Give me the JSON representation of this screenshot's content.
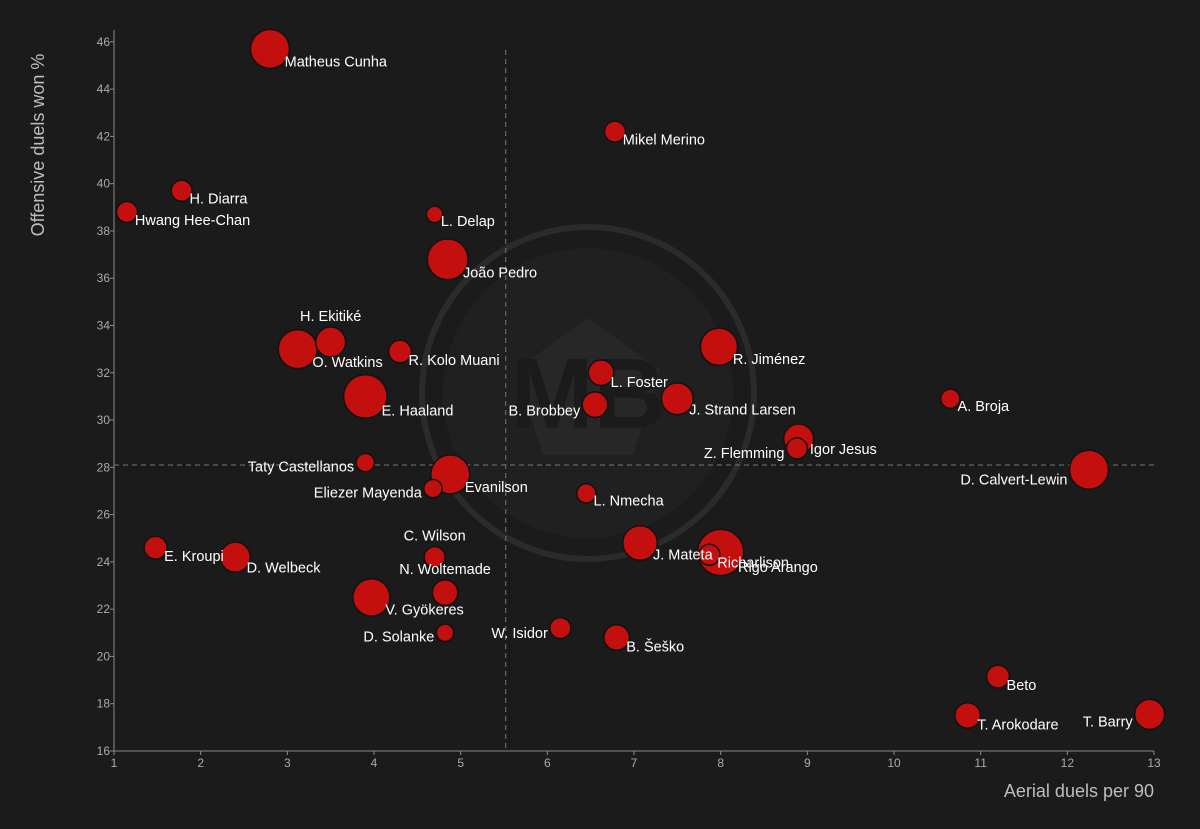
{
  "chart_data": {
    "type": "scatter",
    "title": "",
    "xlabel": "Aerial duels per 90",
    "ylabel": "Offensive duels won %",
    "xlim": [
      1,
      13
    ],
    "ylim": [
      16,
      46.5
    ],
    "xticks": [
      1,
      2,
      3,
      4,
      5,
      6,
      7,
      8,
      9,
      10,
      11,
      12,
      13
    ],
    "yticks": [
      16,
      18,
      20,
      22,
      24,
      26,
      28,
      30,
      32,
      34,
      36,
      38,
      40,
      42,
      44,
      46
    ],
    "reference_lines": {
      "x": 5.52,
      "y": 28.1
    },
    "grid": false,
    "watermark": "MB",
    "colors": {
      "background": "#1b1b1b",
      "marker": "#c40f0f",
      "text": "#ffffff",
      "axis": "#aaaaaa"
    },
    "points": [
      {
        "name": "Matheus Cunha",
        "x": 2.8,
        "y": 45.7,
        "size": 3,
        "anchor": "right"
      },
      {
        "name": "Mikel Merino",
        "x": 6.78,
        "y": 42.2,
        "size": 1,
        "anchor": "right"
      },
      {
        "name": "H. Diarra",
        "x": 1.78,
        "y": 39.7,
        "size": 1,
        "anchor": "right"
      },
      {
        "name": "Hwang Hee-Chan",
        "x": 1.15,
        "y": 38.8,
        "size": 1,
        "anchor": "right"
      },
      {
        "name": "L. Delap",
        "x": 4.7,
        "y": 38.7,
        "size": 0.5,
        "anchor": "right"
      },
      {
        "name": "João Pedro",
        "x": 4.85,
        "y": 36.8,
        "size": 3.2,
        "anchor": "right"
      },
      {
        "name": "H. Ekitiké",
        "x": 3.5,
        "y": 33.3,
        "size": 2,
        "anchor": "above"
      },
      {
        "name": "O. Watkins",
        "x": 3.12,
        "y": 33.0,
        "size": 3,
        "anchor": "right"
      },
      {
        "name": "R. Kolo Muani",
        "x": 4.3,
        "y": 32.9,
        "size": 1.2,
        "anchor": "right"
      },
      {
        "name": "R. Jiménez",
        "x": 7.98,
        "y": 33.1,
        "size": 2.8,
        "anchor": "right"
      },
      {
        "name": "L. Foster",
        "x": 6.62,
        "y": 32.0,
        "size": 1.5,
        "anchor": "right"
      },
      {
        "name": "E. Haaland",
        "x": 3.9,
        "y": 31.0,
        "size": 3.5,
        "anchor": "right"
      },
      {
        "name": "J. Strand Larsen",
        "x": 7.5,
        "y": 30.9,
        "size": 2.2,
        "anchor": "right"
      },
      {
        "name": "B. Brobbey",
        "x": 6.55,
        "y": 30.65,
        "size": 1.5,
        "anchor": "left"
      },
      {
        "name": "A. Broja",
        "x": 10.65,
        "y": 30.9,
        "size": 0.8,
        "anchor": "right"
      },
      {
        "name": "Igor Jesus",
        "x": 8.9,
        "y": 29.2,
        "size": 2,
        "anchor": "right"
      },
      {
        "name": "Z. Flemming",
        "x": 8.88,
        "y": 28.8,
        "size": 1,
        "anchor": "left"
      },
      {
        "name": "D. Calvert-Lewin",
        "x": 12.25,
        "y": 27.9,
        "size": 3,
        "anchor": "left"
      },
      {
        "name": "Taty Castellanos",
        "x": 3.9,
        "y": 28.2,
        "size": 0.7,
        "anchor": "left"
      },
      {
        "name": "Evanilson",
        "x": 4.88,
        "y": 27.7,
        "size": 3,
        "anchor": "right"
      },
      {
        "name": "Eliezer Mayenda",
        "x": 4.68,
        "y": 27.1,
        "size": 0.7,
        "anchor": "left"
      },
      {
        "name": "L. Nmecha",
        "x": 6.45,
        "y": 26.9,
        "size": 0.8,
        "anchor": "right"
      },
      {
        "name": "E. Kroupi",
        "x": 1.48,
        "y": 24.6,
        "size": 1.2,
        "anchor": "right"
      },
      {
        "name": "D. Welbeck",
        "x": 2.4,
        "y": 24.2,
        "size": 2,
        "anchor": "right"
      },
      {
        "name": "C. Wilson",
        "x": 4.7,
        "y": 24.2,
        "size": 1,
        "anchor": "above"
      },
      {
        "name": "J. Mateta",
        "x": 7.07,
        "y": 24.8,
        "size": 2.5,
        "anchor": "right"
      },
      {
        "name": "Richarlison",
        "x": 7.87,
        "y": 24.3,
        "size": 1,
        "anchor": "right"
      },
      {
        "name": "Rigo Arango",
        "x": 8.0,
        "y": 24.4,
        "size": 3.8,
        "anchor": "right"
      },
      {
        "name": "N. Woltemade",
        "x": 4.82,
        "y": 22.7,
        "size": 1.5,
        "anchor": "above"
      },
      {
        "name": "V. Gyökeres",
        "x": 3.97,
        "y": 22.5,
        "size": 2.8,
        "anchor": "right"
      },
      {
        "name": "D. Solanke",
        "x": 4.82,
        "y": 21.0,
        "size": 0.6,
        "anchor": "left"
      },
      {
        "name": "W. Isidor",
        "x": 6.15,
        "y": 21.2,
        "size": 1,
        "anchor": "left"
      },
      {
        "name": "B. Šeško",
        "x": 6.8,
        "y": 20.8,
        "size": 1.5,
        "anchor": "right"
      },
      {
        "name": "Beto",
        "x": 11.2,
        "y": 19.15,
        "size": 1.2,
        "anchor": "right"
      },
      {
        "name": "T. Arokodare",
        "x": 10.85,
        "y": 17.5,
        "size": 1.5,
        "anchor": "right"
      },
      {
        "name": "T. Barry",
        "x": 12.95,
        "y": 17.55,
        "size": 2,
        "anchor": "left"
      }
    ]
  }
}
